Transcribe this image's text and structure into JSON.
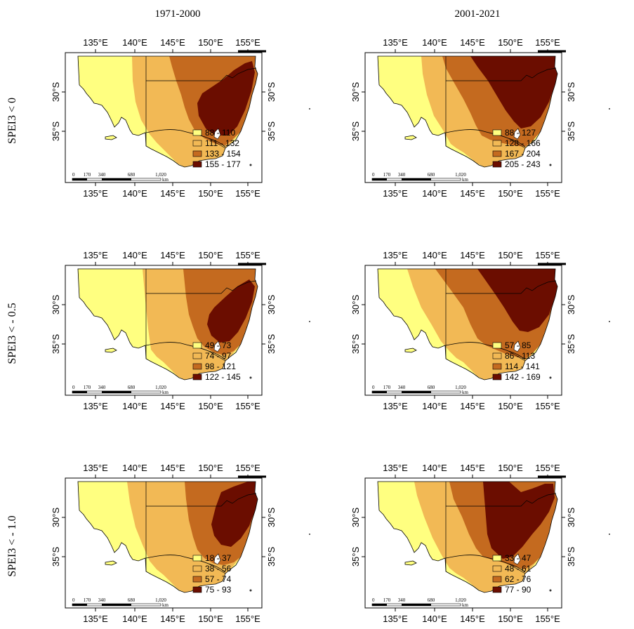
{
  "columns": [
    "1971-2000",
    "2001-2021"
  ],
  "rows": [
    "SPEI3 < 0",
    "SPEI3 < - 0.5",
    "SPEI3 < - 1.0"
  ],
  "lon_ticks": [
    "135°E",
    "140°E",
    "145°E",
    "150°E",
    "155°E"
  ],
  "lat_ticks": [
    "30°S",
    "35°S"
  ],
  "scale_bar": {
    "labels": [
      "0",
      "170",
      "340",
      "680",
      "1,020"
    ],
    "unit": "km"
  },
  "legend_colors": [
    "#ffff80",
    "#f2b955",
    "#c46a1f",
    "#6b0d00"
  ],
  "panels": [
    {
      "row": 0,
      "col": 0,
      "legend": [
        "88 - 110",
        "111 - 132",
        "133 - 154",
        "155 - 177"
      ]
    },
    {
      "row": 0,
      "col": 1,
      "legend": [
        "88 - 127",
        "128 - 166",
        "167 - 204",
        "205 - 243"
      ]
    },
    {
      "row": 1,
      "col": 0,
      "legend": [
        "49 - 73",
        "74 - 97",
        "98 - 121",
        "122 - 145"
      ]
    },
    {
      "row": 1,
      "col": 1,
      "legend": [
        "57 - 85",
        "86 - 113",
        "114 - 141",
        "142 - 169"
      ]
    },
    {
      "row": 2,
      "col": 0,
      "legend": [
        "18 - 37",
        "38 - 56",
        "57 - 74",
        "75 - 93"
      ]
    },
    {
      "row": 2,
      "col": 1,
      "legend": [
        "33 - 47",
        "48 - 61",
        "62 - 76",
        "77 - 90"
      ]
    }
  ]
}
